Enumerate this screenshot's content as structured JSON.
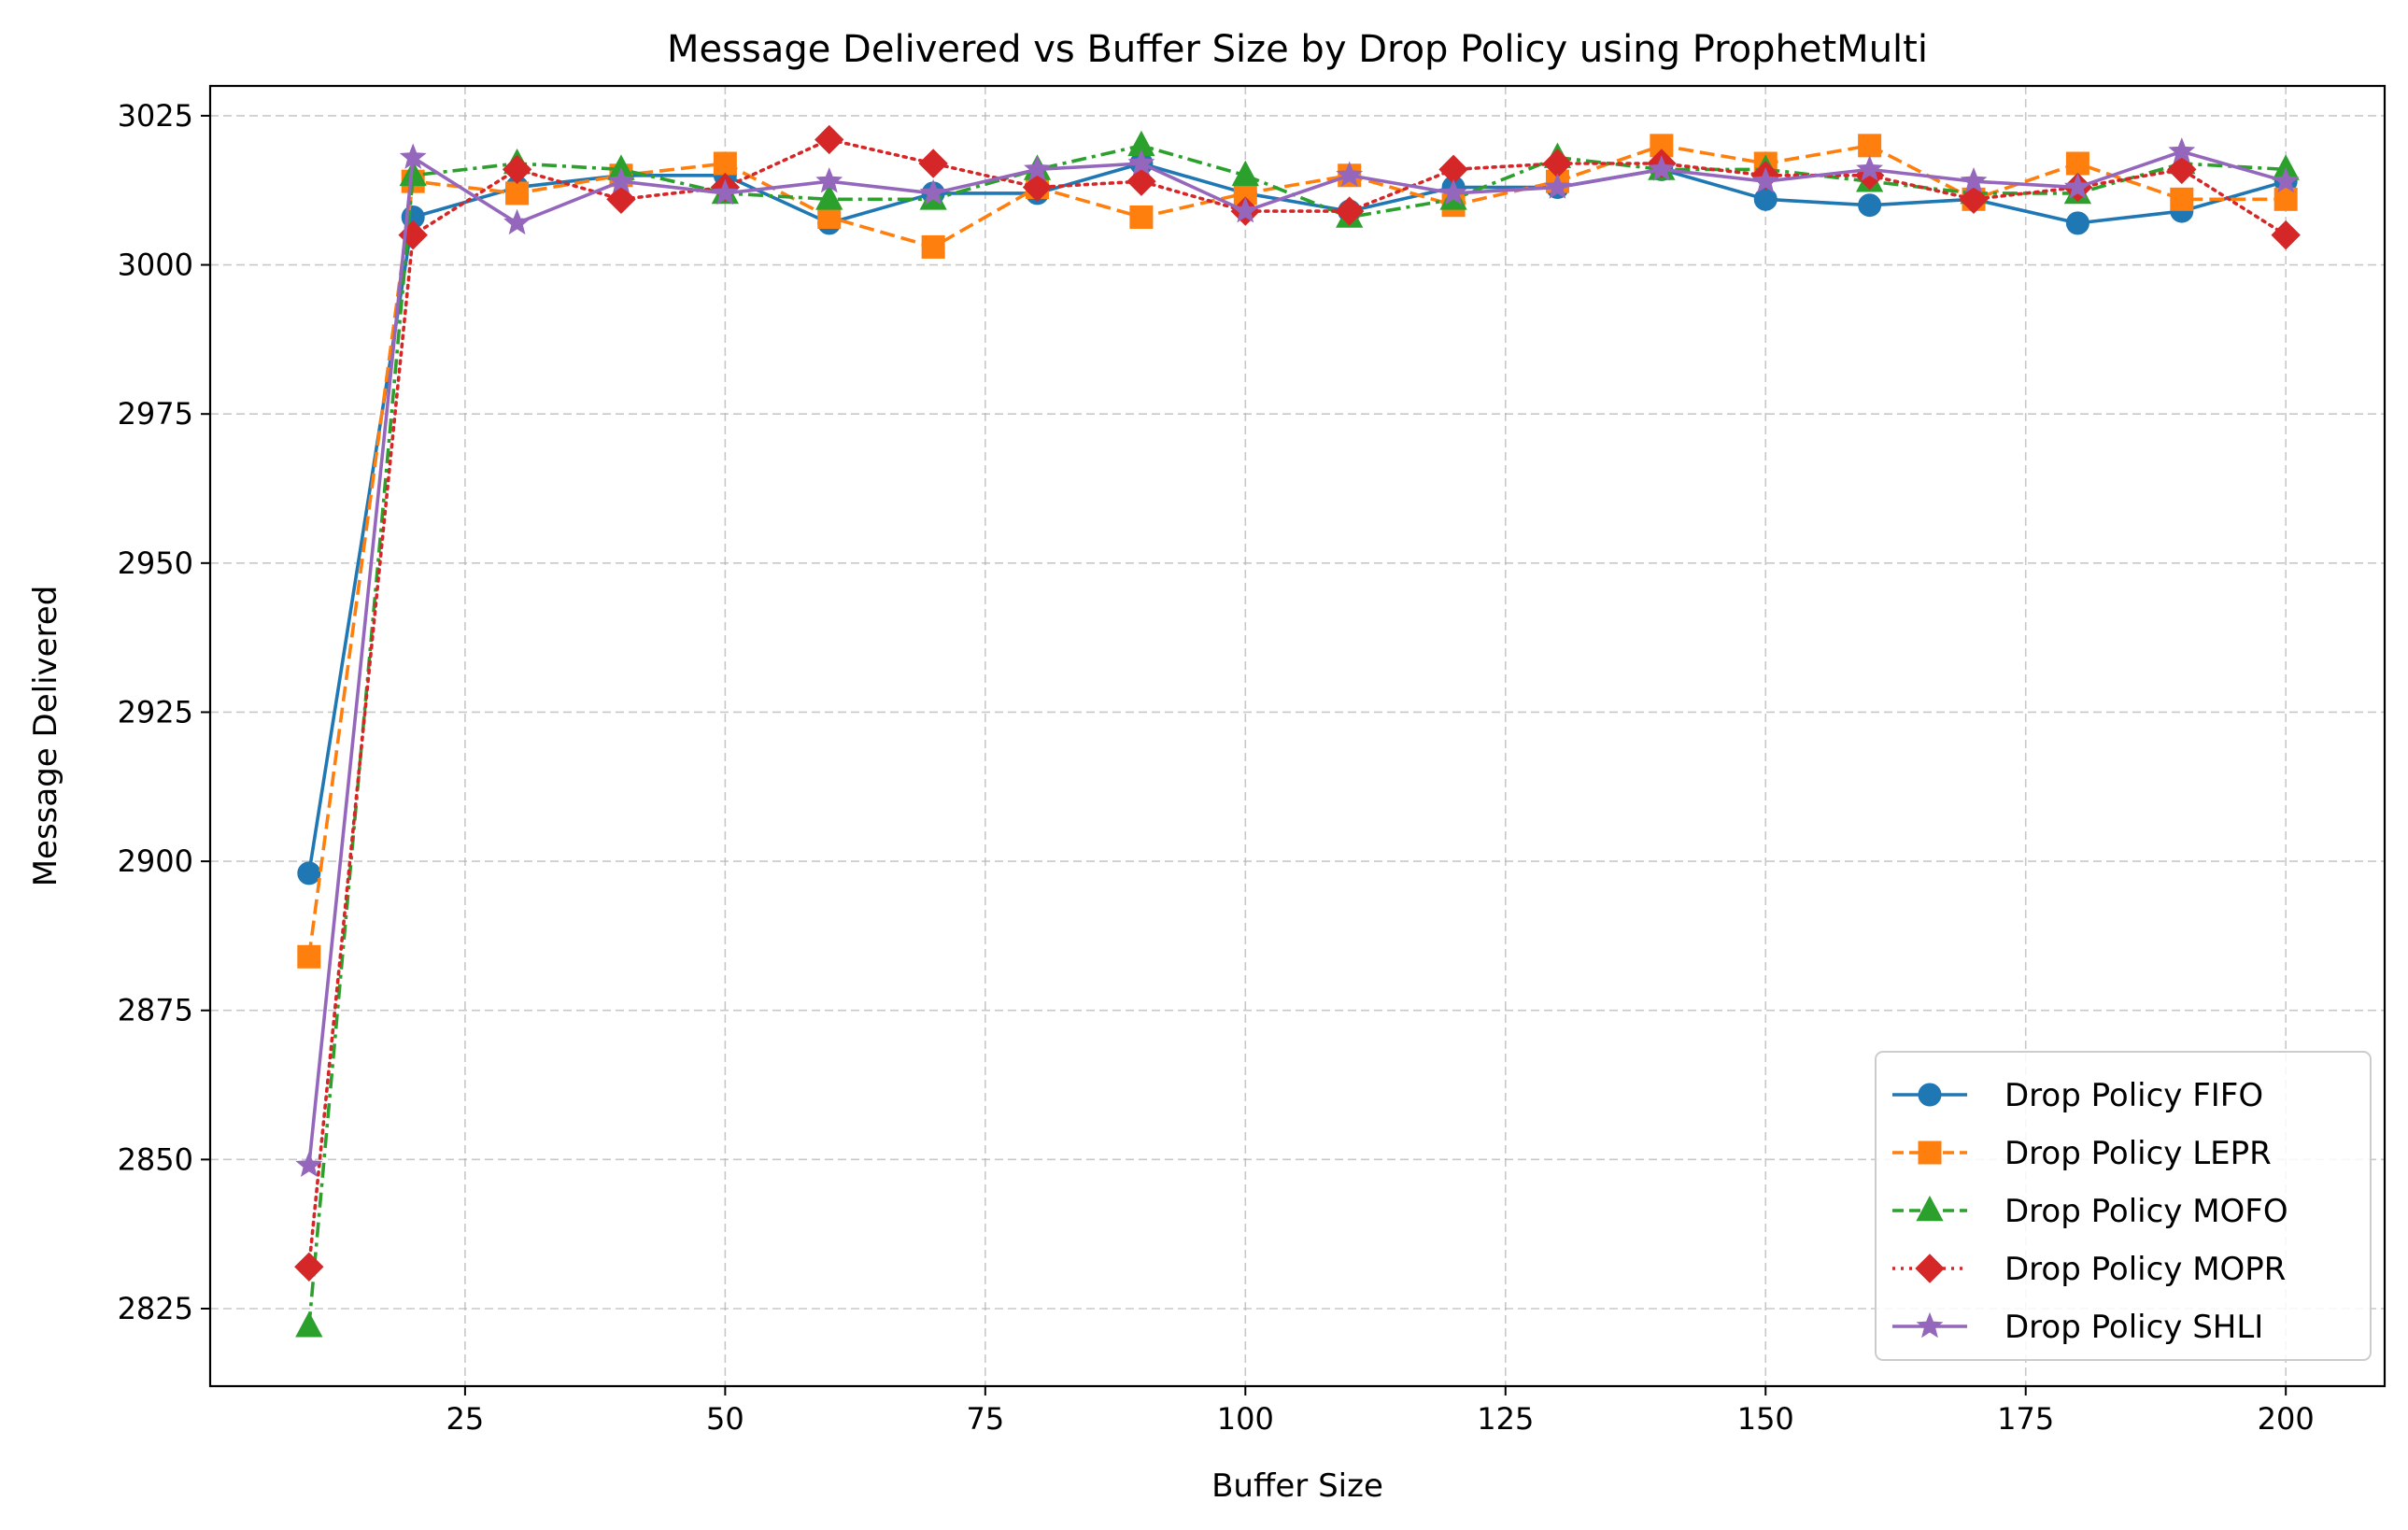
{
  "chart_data": {
    "type": "line",
    "title": "Message Delivered vs Buffer Size by Drop Policy using ProphetMulti",
    "xlabel": "Buffer Size",
    "ylabel": "Message Delivered",
    "x": [
      10,
      20,
      30,
      40,
      50,
      60,
      70,
      80,
      90,
      100,
      110,
      120,
      130,
      140,
      150,
      160,
      170,
      180,
      190,
      200
    ],
    "xlim": [
      0.5,
      209.5
    ],
    "ylim": [
      2812,
      3030
    ],
    "xticks": [
      25,
      50,
      75,
      100,
      125,
      150,
      175,
      200
    ],
    "yticks": [
      2825,
      2850,
      2875,
      2900,
      2925,
      2950,
      2975,
      3000,
      3025
    ],
    "grid": true,
    "legend_position": "lower-right",
    "series": [
      {
        "name": "Drop Policy FIFO",
        "color": "#1f77b4",
        "marker": "circle",
        "linestyle": "solid",
        "values": [
          2898,
          3008,
          3013,
          3015,
          3015,
          3007,
          3012,
          3012,
          3017,
          3012,
          3009,
          3013,
          3013,
          3016,
          3011,
          3010,
          3011,
          3007,
          3009,
          3014
        ]
      },
      {
        "name": "Drop Policy LEPR",
        "color": "#ff7f0e",
        "marker": "square",
        "linestyle": "dashed",
        "values": [
          2884,
          3014,
          3012,
          3015,
          3017,
          3008,
          3003,
          3013,
          3008,
          3012,
          3015,
          3010,
          3014,
          3020,
          3017,
          3020,
          3011,
          3017,
          3011,
          3011
        ]
      },
      {
        "name": "Drop Policy MOFO",
        "color": "#2ca02c",
        "marker": "triangle",
        "linestyle": "dashdot",
        "values": [
          2822,
          3015,
          3017,
          3016,
          3012,
          3011,
          3011,
          3016,
          3020,
          3015,
          3008,
          3011,
          3018,
          3016,
          3016,
          3014,
          3012,
          3012,
          3017,
          3016
        ]
      },
      {
        "name": "Drop Policy MOPR",
        "color": "#d62728",
        "marker": "diamond",
        "linestyle": "dotted",
        "values": [
          2832,
          3005,
          3016,
          3011,
          3013,
          3021,
          3017,
          3013,
          3014,
          3009,
          3009,
          3016,
          3017,
          3017,
          3015,
          3015,
          3011,
          3013,
          3016,
          3005
        ]
      },
      {
        "name": "Drop Policy SHLI",
        "color": "#9467bd",
        "marker": "star",
        "linestyle": "solid",
        "values": [
          2849,
          3018,
          3007,
          3014,
          3012,
          3014,
          3012,
          3016,
          3017,
          3009,
          3015,
          3012,
          3013,
          3016,
          3014,
          3016,
          3014,
          3013,
          3019,
          3014
        ]
      }
    ]
  }
}
